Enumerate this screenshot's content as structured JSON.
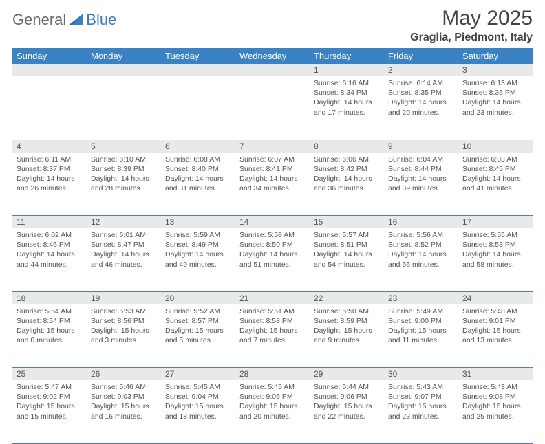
{
  "brand": {
    "part1": "General",
    "part2": "Blue"
  },
  "title": "May 2025",
  "location": "Graglia, Piedmont, Italy",
  "colors": {
    "header_bg": "#3b82c4",
    "header_fg": "#ffffff",
    "daynum_bg": "#e9e9e9",
    "text": "#555555",
    "rule": "#5a7a96",
    "brand_blue": "#3b7bbf",
    "brand_gray": "#6b6b6b"
  },
  "weekday_labels": [
    "Sunday",
    "Monday",
    "Tuesday",
    "Wednesday",
    "Thursday",
    "Friday",
    "Saturday"
  ],
  "weeks": [
    [
      null,
      null,
      null,
      null,
      {
        "n": "1",
        "sunrise": "6:16 AM",
        "sunset": "8:34 PM",
        "daylight": "14 hours and 17 minutes."
      },
      {
        "n": "2",
        "sunrise": "6:14 AM",
        "sunset": "8:35 PM",
        "daylight": "14 hours and 20 minutes."
      },
      {
        "n": "3",
        "sunrise": "6:13 AM",
        "sunset": "8:36 PM",
        "daylight": "14 hours and 23 minutes."
      }
    ],
    [
      {
        "n": "4",
        "sunrise": "6:11 AM",
        "sunset": "8:37 PM",
        "daylight": "14 hours and 26 minutes."
      },
      {
        "n": "5",
        "sunrise": "6:10 AM",
        "sunset": "8:39 PM",
        "daylight": "14 hours and 28 minutes."
      },
      {
        "n": "6",
        "sunrise": "6:08 AM",
        "sunset": "8:40 PM",
        "daylight": "14 hours and 31 minutes."
      },
      {
        "n": "7",
        "sunrise": "6:07 AM",
        "sunset": "8:41 PM",
        "daylight": "14 hours and 34 minutes."
      },
      {
        "n": "8",
        "sunrise": "6:06 AM",
        "sunset": "8:42 PM",
        "daylight": "14 hours and 36 minutes."
      },
      {
        "n": "9",
        "sunrise": "6:04 AM",
        "sunset": "8:44 PM",
        "daylight": "14 hours and 39 minutes."
      },
      {
        "n": "10",
        "sunrise": "6:03 AM",
        "sunset": "8:45 PM",
        "daylight": "14 hours and 41 minutes."
      }
    ],
    [
      {
        "n": "11",
        "sunrise": "6:02 AM",
        "sunset": "8:46 PM",
        "daylight": "14 hours and 44 minutes."
      },
      {
        "n": "12",
        "sunrise": "6:01 AM",
        "sunset": "8:47 PM",
        "daylight": "14 hours and 46 minutes."
      },
      {
        "n": "13",
        "sunrise": "5:59 AM",
        "sunset": "8:49 PM",
        "daylight": "14 hours and 49 minutes."
      },
      {
        "n": "14",
        "sunrise": "5:58 AM",
        "sunset": "8:50 PM",
        "daylight": "14 hours and 51 minutes."
      },
      {
        "n": "15",
        "sunrise": "5:57 AM",
        "sunset": "8:51 PM",
        "daylight": "14 hours and 54 minutes."
      },
      {
        "n": "16",
        "sunrise": "5:56 AM",
        "sunset": "8:52 PM",
        "daylight": "14 hours and 56 minutes."
      },
      {
        "n": "17",
        "sunrise": "5:55 AM",
        "sunset": "8:53 PM",
        "daylight": "14 hours and 58 minutes."
      }
    ],
    [
      {
        "n": "18",
        "sunrise": "5:54 AM",
        "sunset": "8:54 PM",
        "daylight": "15 hours and 0 minutes."
      },
      {
        "n": "19",
        "sunrise": "5:53 AM",
        "sunset": "8:56 PM",
        "daylight": "15 hours and 3 minutes."
      },
      {
        "n": "20",
        "sunrise": "5:52 AM",
        "sunset": "8:57 PM",
        "daylight": "15 hours and 5 minutes."
      },
      {
        "n": "21",
        "sunrise": "5:51 AM",
        "sunset": "8:58 PM",
        "daylight": "15 hours and 7 minutes."
      },
      {
        "n": "22",
        "sunrise": "5:50 AM",
        "sunset": "8:59 PM",
        "daylight": "15 hours and 9 minutes."
      },
      {
        "n": "23",
        "sunrise": "5:49 AM",
        "sunset": "9:00 PM",
        "daylight": "15 hours and 11 minutes."
      },
      {
        "n": "24",
        "sunrise": "5:48 AM",
        "sunset": "9:01 PM",
        "daylight": "15 hours and 13 minutes."
      }
    ],
    [
      {
        "n": "25",
        "sunrise": "5:47 AM",
        "sunset": "9:02 PM",
        "daylight": "15 hours and 15 minutes."
      },
      {
        "n": "26",
        "sunrise": "5:46 AM",
        "sunset": "9:03 PM",
        "daylight": "15 hours and 16 minutes."
      },
      {
        "n": "27",
        "sunrise": "5:45 AM",
        "sunset": "9:04 PM",
        "daylight": "15 hours and 18 minutes."
      },
      {
        "n": "28",
        "sunrise": "5:45 AM",
        "sunset": "9:05 PM",
        "daylight": "15 hours and 20 minutes."
      },
      {
        "n": "29",
        "sunrise": "5:44 AM",
        "sunset": "9:06 PM",
        "daylight": "15 hours and 22 minutes."
      },
      {
        "n": "30",
        "sunrise": "5:43 AM",
        "sunset": "9:07 PM",
        "daylight": "15 hours and 23 minutes."
      },
      {
        "n": "31",
        "sunrise": "5:43 AM",
        "sunset": "9:08 PM",
        "daylight": "15 hours and 25 minutes."
      }
    ]
  ],
  "labels": {
    "sunrise": "Sunrise: ",
    "sunset": "Sunset: ",
    "daylight": "Daylight: "
  }
}
